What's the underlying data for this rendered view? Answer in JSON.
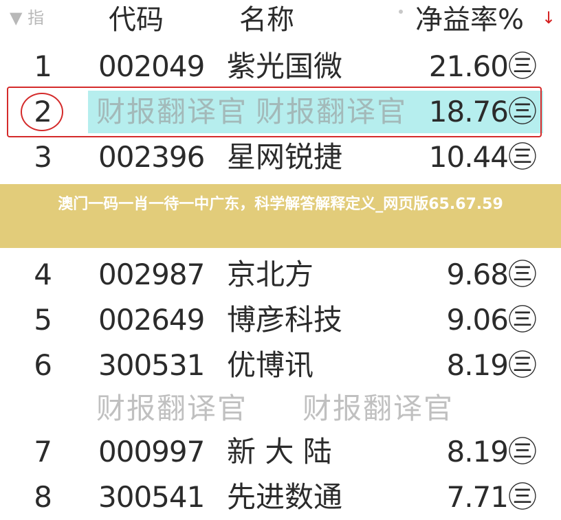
{
  "header": {
    "filter_label": "▼ 指",
    "columns": [
      "代码",
      "名称",
      "净益率%"
    ],
    "sort_icon": "arrow-down-icon",
    "sort_color": "#d42020"
  },
  "rows": [
    {
      "index": "1",
      "code": "002049",
      "name": "紫光国微",
      "value": "21.60㊂"
    },
    {
      "index": "2",
      "code": "",
      "name": "",
      "value": "18.76㊂"
    },
    {
      "index": "3",
      "code": "002396",
      "name": "星网锐捷",
      "value": "10.44㊂"
    },
    {
      "index": "4",
      "code": "002987",
      "name": "京北方",
      "value": "9.68㊂"
    },
    {
      "index": "5",
      "code": "002649",
      "name": "博彦科技",
      "value": "9.06㊂"
    },
    {
      "index": "6",
      "code": "300531",
      "name": "优博讯",
      "value": "8.19㊂"
    },
    {
      "index": "7",
      "code": "000997",
      "name": "新 大 陆",
      "value": "8.19㊂"
    },
    {
      "index": "8",
      "code": "300541",
      "name": "先进数通",
      "value": "7.71㊂"
    }
  ],
  "watermark": "财报翻译官",
  "highlight_color": "#b6eeee",
  "annotation_color": "#d42a2a",
  "banner": {
    "text": "澳门一码一肖一待一中广东，科学解答解释定义_网页版65.67.59",
    "color": "#e2cc7a"
  }
}
